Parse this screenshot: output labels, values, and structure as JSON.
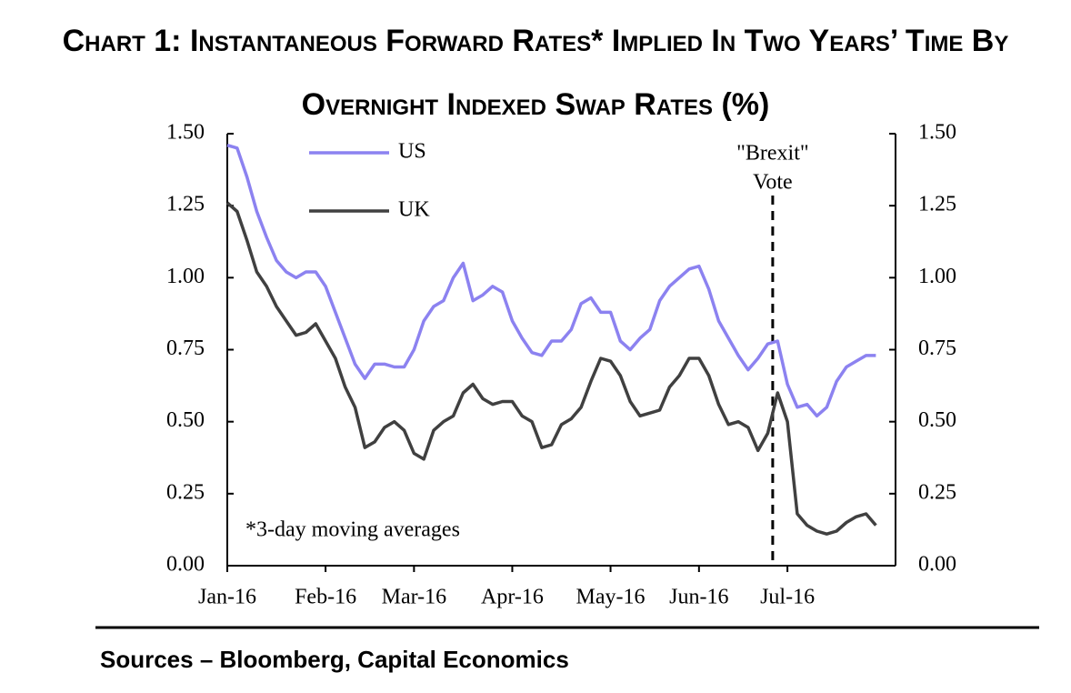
{
  "chart_data": {
    "type": "line",
    "title": "Chart 1: Instantaneous Forward Rates* Implied In Two Years’ Time By Overnight Indexed Swap Rates (%)",
    "categories": [
      "Jan-16",
      null,
      null,
      null,
      null,
      null,
      null,
      null,
      null,
      null,
      "Feb-16",
      null,
      null,
      null,
      null,
      null,
      null,
      null,
      null,
      "Mar-16",
      null,
      null,
      null,
      null,
      null,
      null,
      null,
      null,
      null,
      "Apr-16",
      null,
      null,
      null,
      null,
      null,
      null,
      null,
      null,
      null,
      "May-16",
      null,
      null,
      null,
      null,
      null,
      null,
      null,
      null,
      "Jun-16",
      null,
      null,
      null,
      null,
      null,
      null,
      null,
      null,
      "Jul-16",
      null,
      null,
      null,
      null,
      null,
      null,
      null,
      null,
      null
    ],
    "series": [
      {
        "name": "US",
        "color": "#8c82f0",
        "values": [
          1.46,
          1.45,
          1.35,
          1.23,
          1.14,
          1.06,
          1.02,
          1.0,
          1.02,
          1.02,
          0.97,
          0.88,
          0.79,
          0.7,
          0.65,
          0.7,
          0.7,
          0.69,
          0.69,
          0.75,
          0.85,
          0.9,
          0.92,
          1.0,
          1.05,
          0.92,
          0.94,
          0.97,
          0.95,
          0.85,
          0.79,
          0.74,
          0.73,
          0.78,
          0.78,
          0.82,
          0.91,
          0.93,
          0.88,
          0.88,
          0.78,
          0.75,
          0.79,
          0.82,
          0.92,
          0.97,
          1.0,
          1.03,
          1.04,
          0.96,
          0.85,
          0.79,
          0.73,
          0.68,
          0.72,
          0.77,
          0.78,
          0.63,
          0.55,
          0.56,
          0.52,
          0.55,
          0.64,
          0.69,
          0.71,
          0.73,
          0.73
        ]
      },
      {
        "name": "UK",
        "color": "#404040",
        "values": [
          1.26,
          1.23,
          1.13,
          1.02,
          0.97,
          0.9,
          0.85,
          0.8,
          0.81,
          0.84,
          0.78,
          0.72,
          0.62,
          0.55,
          0.41,
          0.43,
          0.48,
          0.5,
          0.47,
          0.39,
          0.37,
          0.47,
          0.5,
          0.52,
          0.6,
          0.63,
          0.58,
          0.56,
          0.57,
          0.57,
          0.52,
          0.5,
          0.41,
          0.42,
          0.49,
          0.51,
          0.55,
          0.64,
          0.72,
          0.71,
          0.66,
          0.57,
          0.52,
          0.53,
          0.54,
          0.62,
          0.66,
          0.72,
          0.72,
          0.66,
          0.56,
          0.49,
          0.5,
          0.48,
          0.4,
          0.46,
          0.6,
          0.5,
          0.18,
          0.14,
          0.12,
          0.11,
          0.12,
          0.15,
          0.17,
          0.18,
          0.14
        ]
      }
    ],
    "ylim": [
      0,
      1.5
    ],
    "yticks": [
      {
        "value": 0,
        "label": "0.00"
      },
      0.25,
      {
        "value": 0.5,
        "label": "0.50"
      },
      0.75,
      {
        "value": 1,
        "label": "1.00"
      },
      1.25,
      {
        "value": 1.5,
        "label": "1.50"
      }
    ],
    "y2lim": [
      0,
      1.5
    ],
    "y2ticks": [
      {
        "value": 0,
        "label": "0.00"
      },
      0.25,
      {
        "value": 0.5,
        "label": "0.50"
      },
      0.75,
      {
        "value": 1,
        "label": "1.00"
      },
      1.25,
      {
        "value": 1.5,
        "label": "1.50"
      }
    ],
    "legend": "upper left",
    "annotations": [
      {
        "lines": [
          "\"Brexit\"",
          "Vote"
        ]
      },
      {
        "text": "*3-day moving averages"
      }
    ],
    "source": "Sources – Bloomberg, Capital Economics"
  }
}
